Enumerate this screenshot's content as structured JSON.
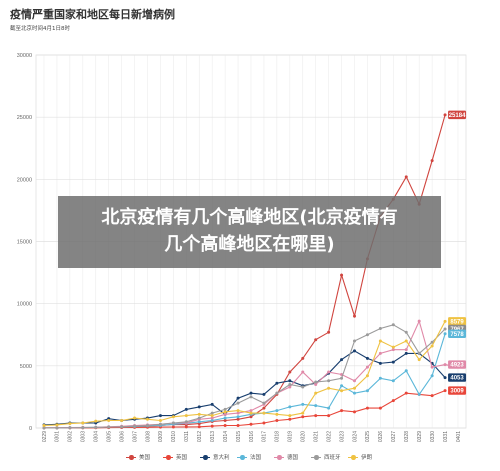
{
  "chart_data": {
    "type": "line",
    "title": "疫情严重国家和地区每日新增病例",
    "subtitle": "截至北京时间4月1日8时",
    "ylim": [
      0,
      30000
    ],
    "y_ticks": [
      "0",
      "5000",
      "10000",
      "15000",
      "20000",
      "25000",
      "30000"
    ],
    "y_tick_values": [
      0,
      5000,
      10000,
      15000,
      20000,
      25000,
      30000
    ],
    "categories": [
      "0229",
      "0301",
      "0302",
      "0303",
      "0304",
      "0305",
      "0306",
      "0307",
      "0308",
      "0309",
      "0310",
      "0311",
      "0312",
      "0313",
      "0314",
      "0315",
      "0316",
      "0317",
      "0318",
      "0319",
      "0320",
      "0321",
      "0322",
      "0323",
      "0324",
      "0325",
      "0326",
      "0327",
      "0328",
      "0329",
      "0330",
      "0331",
      "0401"
    ],
    "series": [
      {
        "name": "美国",
        "color": "#d0453f",
        "values": [
          10,
          10,
          20,
          30,
          30,
          50,
          80,
          100,
          120,
          200,
          290,
          270,
          350,
          520,
          600,
          700,
          900,
          1600,
          2700,
          4500,
          5600,
          7100,
          7700,
          12300,
          9000,
          13600,
          17000,
          18400,
          20200,
          18000,
          21500,
          25184,
          null
        ]
      },
      {
        "name": "英国",
        "color": "#e8463a",
        "values": [
          5,
          5,
          10,
          10,
          20,
          30,
          40,
          50,
          60,
          70,
          80,
          90,
          100,
          150,
          200,
          200,
          300,
          400,
          600,
          700,
          900,
          1000,
          1000,
          1400,
          1300,
          1600,
          1600,
          2200,
          2800,
          2700,
          2600,
          3009,
          null
        ]
      },
      {
        "name": "意大利",
        "color": "#183e6e",
        "values": [
          250,
          300,
          400,
          400,
          400,
          750,
          600,
          700,
          800,
          1000,
          1000,
          1500,
          1700,
          1900,
          1100,
          2400,
          2800,
          2700,
          3600,
          3800,
          3400,
          3600,
          4400,
          5500,
          6200,
          5600,
          5200,
          5300,
          6000,
          6000,
          5200,
          4053,
          null
        ]
      },
      {
        "name": "法国",
        "color": "#5bb7d9",
        "values": [
          10,
          10,
          30,
          30,
          60,
          80,
          100,
          120,
          170,
          200,
          300,
          380,
          500,
          600,
          800,
          900,
          1100,
          1200,
          1400,
          1700,
          1900,
          1800,
          1600,
          3400,
          2800,
          3000,
          4000,
          3800,
          4600,
          2700,
          4200,
          7578,
          null
        ]
      },
      {
        "name": "德国",
        "color": "#e089a8",
        "values": [
          20,
          20,
          30,
          50,
          60,
          100,
          140,
          200,
          250,
          300,
          400,
          400,
          700,
          800,
          1100,
          1200,
          1400,
          1900,
          2800,
          3300,
          4500,
          3500,
          4500,
          4300,
          3800,
          4900,
          6000,
          6300,
          6300,
          8600,
          4900,
          5100,
          4923
        ]
      },
      {
        "name": "西班牙",
        "color": "#9b9b9b",
        "values": [
          10,
          10,
          20,
          30,
          50,
          80,
          100,
          150,
          200,
          300,
          400,
          500,
          800,
          1200,
          1500,
          2000,
          2500,
          2000,
          2800,
          3500,
          3300,
          3700,
          3800,
          4000,
          7000,
          7500,
          8000,
          8300,
          7700,
          6000,
          6900,
          7967,
          null
        ]
      },
      {
        "name": "伊朗",
        "color": "#efc242",
        "values": [
          200,
          250,
          350,
          400,
          550,
          600,
          600,
          800,
          700,
          600,
          900,
          1000,
          1100,
          1000,
          1300,
          1400,
          1200,
          1200,
          1100,
          1000,
          1200,
          2800,
          3200,
          3000,
          3200,
          4200,
          7000,
          6500,
          7000,
          5500,
          6600,
          8579,
          null
        ]
      }
    ],
    "end_labels": [
      {
        "series": "美国",
        "text": "25184",
        "color": "#d0453f"
      },
      {
        "series": "伊朗",
        "text": "8579",
        "color": "#efc242"
      },
      {
        "series": "西班牙",
        "text": "7967",
        "color": "#8a8a8a"
      },
      {
        "series": "法国",
        "text": "7578",
        "color": "#5bb7d9"
      },
      {
        "series": "德国",
        "text": "4923",
        "color": "#e089a8"
      },
      {
        "series": "意大利",
        "text": "4053",
        "color": "#183e6e"
      },
      {
        "series": "英国",
        "text": "3009",
        "color": "#e8463a"
      }
    ],
    "grid": true,
    "legend_position": "bottom"
  },
  "overlay": {
    "line1": "北京疫情有几个高峰地区(北京疫情有",
    "line2": "几个高峰地区在哪里)"
  }
}
